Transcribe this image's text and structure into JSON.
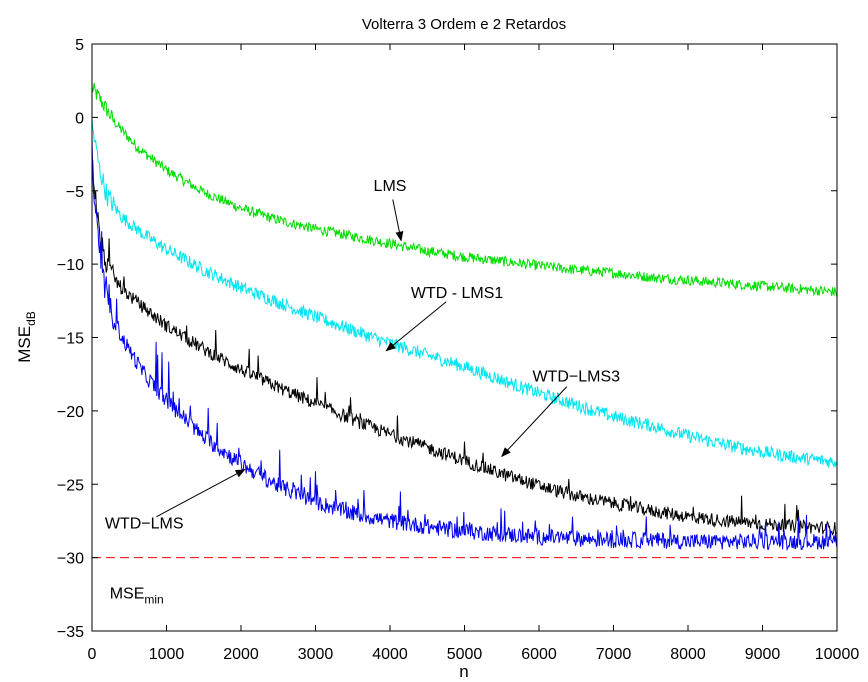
{
  "chart_data": {
    "type": "line",
    "title": "Volterra 3 Ordem e 2 Retardos",
    "xlabel": "n",
    "ylabel": "MSE",
    "ylabel_sub": "dB",
    "xlim": [
      0,
      10000
    ],
    "ylim": [
      -35,
      5
    ],
    "xticks": [
      0,
      1000,
      2000,
      3000,
      4000,
      5000,
      6000,
      7000,
      8000,
      9000,
      10000
    ],
    "yticks": [
      5,
      0,
      -5,
      -10,
      -15,
      -20,
      -25,
      -30,
      -35
    ],
    "grid": false,
    "legend": "none",
    "series": [
      {
        "color": "#00dd00",
        "noise": 0.35,
        "x": [
          0,
          100,
          300,
          600,
          1000,
          1500,
          2000,
          2500,
          3000,
          3500,
          4000,
          4500,
          5000,
          5500,
          6000,
          6500,
          7000,
          7500,
          8000,
          8500,
          9000,
          9500,
          10000
        ],
        "y": [
          2,
          1.3,
          -0.3,
          -2.0,
          -3.6,
          -5.1,
          -6.2,
          -7.0,
          -7.6,
          -8.1,
          -8.6,
          -9.1,
          -9.5,
          -9.8,
          -10.1,
          -10.4,
          -10.6,
          -10.9,
          -11.1,
          -11.3,
          -11.5,
          -11.7,
          -11.9
        ]
      },
      {
        "color": "#00e5ee",
        "noise": 0.45,
        "x": [
          0,
          100,
          200,
          400,
          700,
          1000,
          1500,
          2000,
          2500,
          3000,
          3500,
          4000,
          4500,
          5000,
          5500,
          6000,
          6500,
          7000,
          7500,
          8000,
          8500,
          9000,
          9500,
          10000
        ],
        "y": [
          -0.5,
          -3.5,
          -5.3,
          -6.8,
          -8.0,
          -9.0,
          -10.4,
          -11.6,
          -12.6,
          -13.6,
          -14.5,
          -15.4,
          -16.2,
          -17.0,
          -17.9,
          -18.8,
          -19.6,
          -20.4,
          -21.0,
          -21.7,
          -22.3,
          -22.8,
          -23.2,
          -23.5
        ]
      },
      {
        "color": "#000000",
        "noise": 0.45,
        "x": [
          0,
          100,
          200,
          400,
          700,
          1000,
          1500,
          2000,
          2500,
          3000,
          3500,
          4000,
          4500,
          5000,
          5500,
          6000,
          6500,
          7000,
          7500,
          8000,
          8500,
          9000,
          9500,
          10000
        ],
        "y": [
          -3,
          -8.0,
          -10.2,
          -11.7,
          -13.0,
          -14.2,
          -15.8,
          -17.2,
          -18.4,
          -19.5,
          -20.6,
          -21.6,
          -22.5,
          -23.4,
          -24.3,
          -25.1,
          -25.8,
          -26.3,
          -26.8,
          -27.2,
          -27.5,
          -27.7,
          -27.9,
          -28.0
        ]
      },
      {
        "color": "#0000ee",
        "noise": 0.55,
        "x": [
          0,
          100,
          200,
          400,
          700,
          1000,
          1500,
          2000,
          2500,
          3000,
          3500,
          4000,
          4500,
          5000,
          5500,
          6000,
          6500,
          7000,
          7500,
          8000,
          8500,
          9000,
          9500,
          10000
        ],
        "y": [
          -3.5,
          -9.5,
          -12.5,
          -15.0,
          -17.5,
          -19.3,
          -21.8,
          -23.6,
          -25.1,
          -26.2,
          -27.0,
          -27.5,
          -27.9,
          -28.2,
          -28.4,
          -28.6,
          -28.7,
          -28.8,
          -28.8,
          -28.9,
          -28.9,
          -28.9,
          -28.9,
          -28.9
        ]
      }
    ],
    "reference_line": {
      "y": -30,
      "color": "#ff0000",
      "style": "dashed"
    },
    "annotations": [
      {
        "text": "LMS",
        "x": 4000,
        "y": -5.0,
        "arrow_to": [
          4150,
          -8.4
        ]
      },
      {
        "text": "WTD - LMS1",
        "x": 4900,
        "y": -12.3,
        "arrow_to": [
          3950,
          -15.9
        ]
      },
      {
        "text": "WTD−LMS3",
        "x": 6500,
        "y": -18.0,
        "arrow_to": [
          5500,
          -23.1
        ]
      },
      {
        "text": "WTD−LMS",
        "x": 700,
        "y": -28.0,
        "arrow_to": [
          2050,
          -24.0
        ]
      },
      {
        "text": "MSE",
        "sub": "min",
        "x": 600,
        "y": -32.8
      }
    ]
  }
}
